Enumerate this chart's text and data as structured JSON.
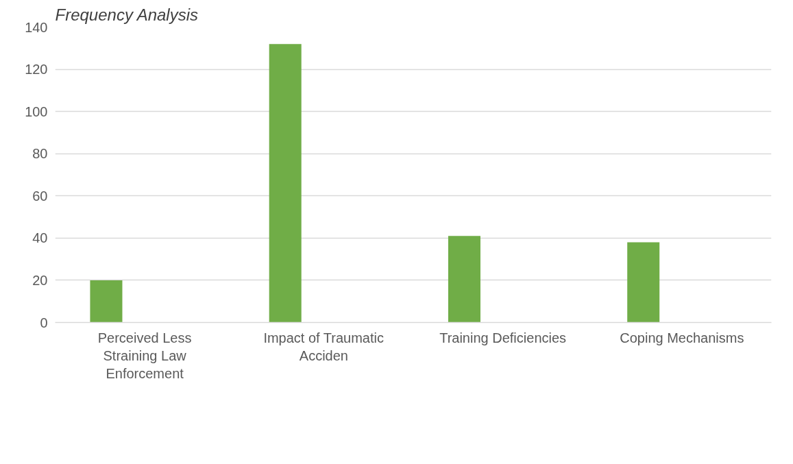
{
  "chart_data": {
    "type": "bar",
    "title": "Frequency Analysis",
    "categories": [
      "Perceived Less Straining Law Enforcement",
      "Impact of Traumatic Acciden",
      "Training Deficiencies",
      "Coping Mechanisms"
    ],
    "values": [
      20,
      132,
      41,
      38
    ],
    "color": "#70ad47",
    "ylim": [
      0,
      140
    ],
    "yticks": [
      0,
      20,
      40,
      60,
      80,
      100,
      120,
      140
    ],
    "grid": "y"
  }
}
